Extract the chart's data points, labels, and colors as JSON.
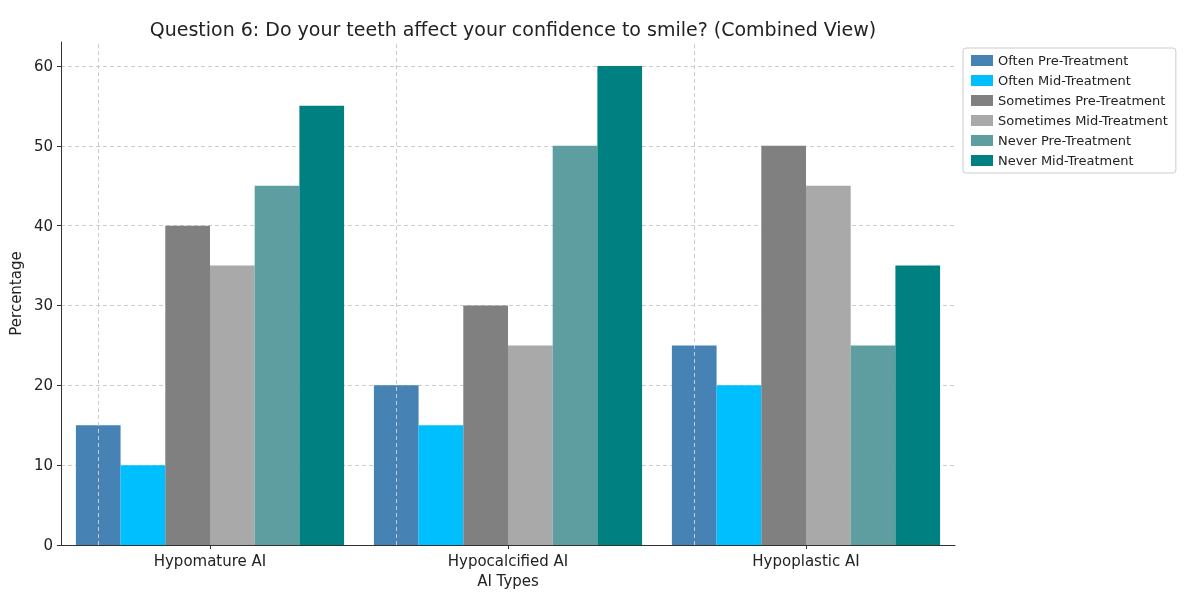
{
  "chart_data": {
    "type": "bar",
    "title": "Question 6: Do your teeth affect your confidence to smile? (Combined View)",
    "xlabel": "AI Types",
    "ylabel": "Percentage",
    "categories": [
      "Hypomature AI",
      "Hypocalcified AI",
      "Hypoplastic AI"
    ],
    "series": [
      {
        "name": "Often Pre-Treatment",
        "color": "#4682b4",
        "values": [
          15,
          20,
          25
        ]
      },
      {
        "name": "Often Mid-Treatment",
        "color": "#00bfff",
        "values": [
          10,
          15,
          20
        ]
      },
      {
        "name": "Sometimes Pre-Treatment",
        "color": "#808080",
        "values": [
          40,
          30,
          50
        ]
      },
      {
        "name": "Sometimes Mid-Treatment",
        "color": "#a9a9a9",
        "values": [
          35,
          25,
          45
        ]
      },
      {
        "name": "Never Pre-Treatment",
        "color": "#5f9ea0",
        "values": [
          45,
          50,
          25
        ]
      },
      {
        "name": "Never Mid-Treatment",
        "color": "#008080",
        "values": [
          55,
          60,
          35
        ]
      }
    ],
    "ylim": [
      0,
      63
    ],
    "yticks": [
      0,
      10,
      20,
      30,
      40,
      50,
      60
    ],
    "grid": true,
    "legend": "top right"
  }
}
